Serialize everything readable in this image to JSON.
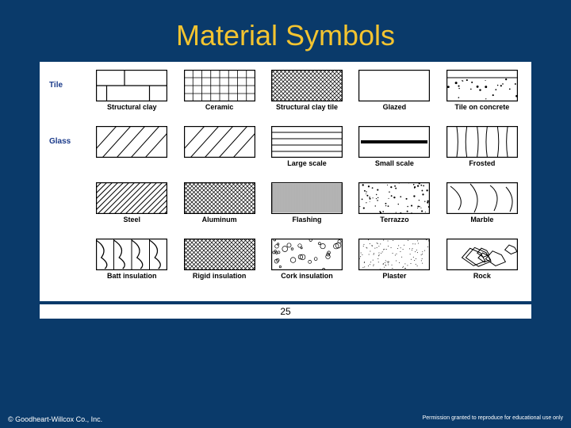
{
  "colors": {
    "background": "#0a3a6a",
    "title": "#f4c430",
    "panel_bg": "#ffffff",
    "label_color": "#000000",
    "category_color": "#1a3a8a",
    "stroke": "#000000"
  },
  "title": "Material Symbols",
  "page_number": "25",
  "copyright": "© Goodheart-Willcox Co., Inc.",
  "permission": "Permission granted to reproduce for educational use only",
  "swatch": {
    "width": 90,
    "height": 40,
    "stroke_width": 1.2
  },
  "rows": [
    {
      "category": "Tile",
      "cells": [
        {
          "label": "Structural clay",
          "pattern": "brick"
        },
        {
          "label": "Ceramic",
          "pattern": "smallgrid"
        },
        {
          "label": "Structural clay tile",
          "pattern": "crosshatch-dense"
        },
        {
          "label": "Glazed",
          "pattern": "blank"
        },
        {
          "label": "Tile on concrete",
          "pattern": "dots-top"
        }
      ]
    },
    {
      "category": "Glass",
      "cells": [
        {
          "label": "",
          "pattern": "diag-sparse"
        },
        {
          "label": "",
          "pattern": "diag-sparse"
        },
        {
          "label": "Large scale",
          "pattern": "h-lines"
        },
        {
          "label": "Small scale",
          "pattern": "heavy-mid"
        },
        {
          "label": "Frosted",
          "pattern": "v-curves"
        }
      ]
    },
    {
      "category": "",
      "cells": [
        {
          "label": "Steel",
          "pattern": "diag-med"
        },
        {
          "label": "Aluminum",
          "pattern": "crosshatch-dense"
        },
        {
          "label": "Flashing",
          "pattern": "v-dense"
        },
        {
          "label": "Terrazzo",
          "pattern": "speckle"
        },
        {
          "label": "Marble",
          "pattern": "marble"
        }
      ]
    },
    {
      "category": "",
      "cells": [
        {
          "label": "Batt insulation",
          "pattern": "batt"
        },
        {
          "label": "Rigid insulation",
          "pattern": "crosshatch-dense"
        },
        {
          "label": "Cork insulation",
          "pattern": "cork"
        },
        {
          "label": "Plaster",
          "pattern": "stipple"
        },
        {
          "label": "Rock",
          "pattern": "rock"
        }
      ]
    }
  ]
}
